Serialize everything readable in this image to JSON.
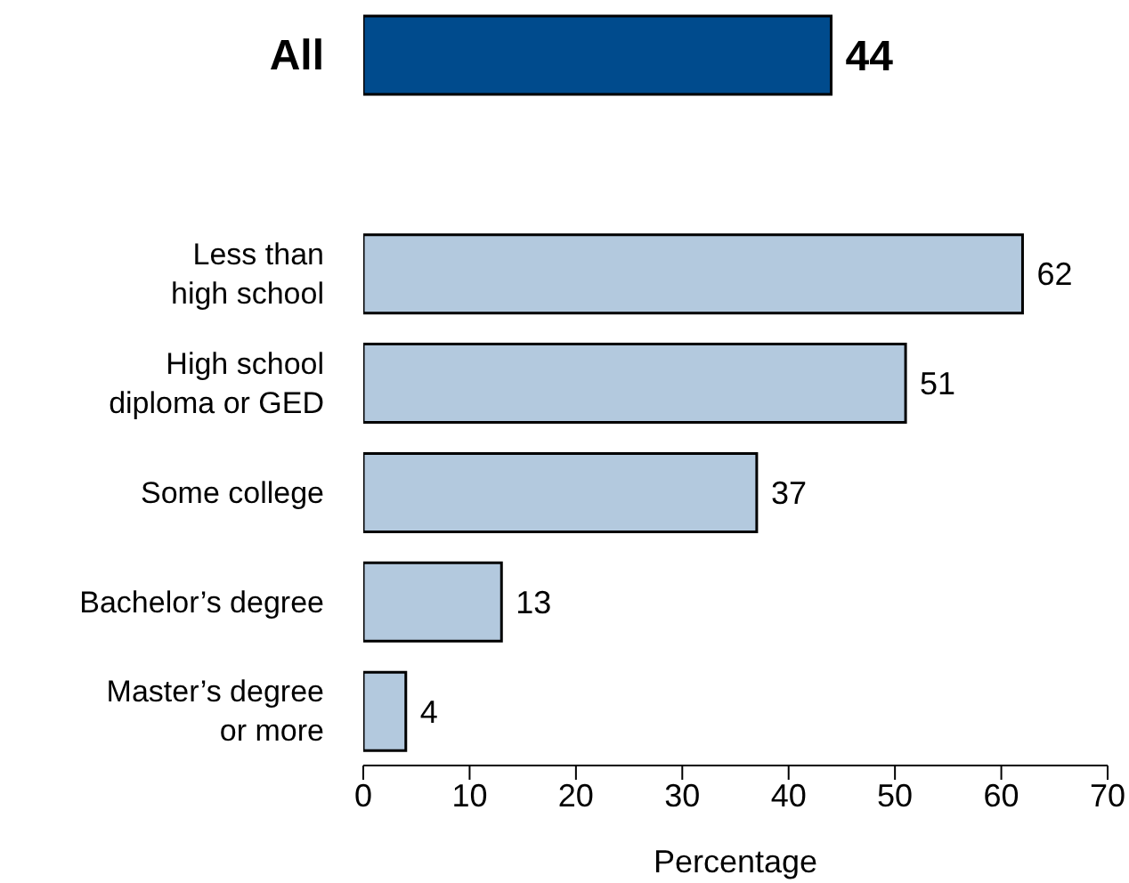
{
  "chart_data": {
    "type": "bar",
    "orientation": "horizontal",
    "xlabel": "Percentage",
    "categories": [
      "All",
      null,
      "Less than\nhigh school",
      "High school\ndiploma or GED",
      "Some college",
      "Bachelor’s degree",
      "Master’s degree\nor more"
    ],
    "values": [
      44,
      null,
      62,
      51,
      37,
      13,
      4
    ],
    "colors": [
      "#004b8d",
      "#ffffff",
      "#b3c9de",
      "#b3c9de",
      "#b3c9de",
      "#b3c9de",
      "#b3c9de"
    ],
    "xlim": [
      0,
      70
    ],
    "xticks": [
      0,
      10,
      20,
      30,
      40,
      50,
      60,
      70
    ],
    "data_labels": true,
    "grid": false,
    "legend": false
  }
}
